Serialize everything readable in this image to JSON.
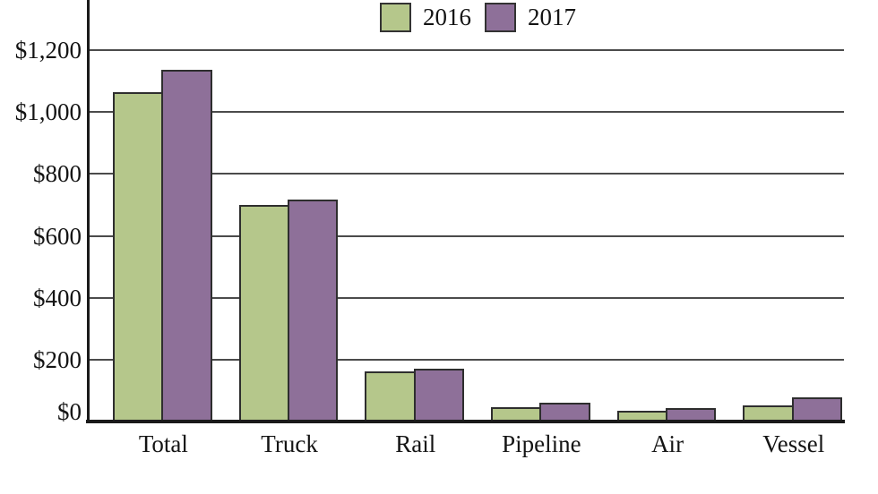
{
  "chart_data": {
    "type": "bar",
    "title": "",
    "xlabel": "",
    "ylabel": "",
    "categories": [
      "Total",
      "Truck",
      "Rail",
      "Pipeline",
      "Air",
      "Vessel"
    ],
    "series": [
      {
        "name": "2016",
        "color": "#b5c78b",
        "values": [
          1065,
          700,
          163,
          46,
          35,
          53
        ]
      },
      {
        "name": "2017",
        "color": "#8e7099",
        "values": [
          1137,
          717,
          172,
          61,
          44,
          77
        ]
      }
    ],
    "y_ticks": [
      {
        "label": "$0",
        "value": 0
      },
      {
        "label": "$200",
        "value": 200
      },
      {
        "label": "$400",
        "value": 400
      },
      {
        "label": "$600",
        "value": 600
      },
      {
        "label": "$800",
        "value": 800
      },
      {
        "label": "$1,000",
        "value": 1000
      },
      {
        "label": "$1,200",
        "value": 1200
      }
    ],
    "ylim": [
      0,
      1362
    ],
    "grid": true,
    "legend_position": "top-center",
    "bar_border_color": "#2e2e2e",
    "axis_color": "#1a1a1a",
    "gridline_color": "#4b4b4b"
  }
}
